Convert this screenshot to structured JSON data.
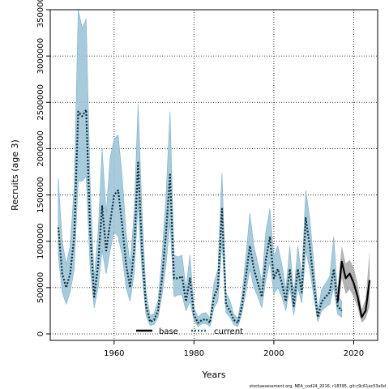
{
  "chart_data": {
    "type": "line",
    "xlabel": "Years",
    "ylabel": "Recruits (age 3)",
    "xlim": [
      1944,
      2026
    ],
    "ylim": [
      -70000,
      3500000
    ],
    "xticks": [
      1960,
      1980,
      2000,
      2020
    ],
    "xtick_labels": [
      "1960",
      "1980",
      "2000",
      "2020"
    ],
    "yticks": [
      0,
      500000,
      1000000,
      1500000,
      2000000,
      2500000,
      3000000,
      3500000
    ],
    "ytick_labels": [
      "0",
      "500000",
      "1000000",
      "1500000",
      "2000000",
      "2500000",
      "3000000",
      "3500000"
    ],
    "grid": true,
    "legend_position": "bottom-center",
    "legend": [
      {
        "label": "base",
        "style": "solid",
        "color": "#000000"
      },
      {
        "label": "current",
        "style": "dotted",
        "color": "#1a6a7a"
      }
    ],
    "band_colors": {
      "base": "#a0a0a0",
      "current": "#9fc5d8"
    },
    "series": [
      {
        "name": "current",
        "style": "dotted",
        "x": [
          1946,
          1947,
          1948,
          1949,
          1950,
          1951,
          1952,
          1953,
          1954,
          1955,
          1956,
          1957,
          1958,
          1959,
          1960,
          1961,
          1962,
          1963,
          1964,
          1965,
          1966,
          1967,
          1968,
          1969,
          1970,
          1971,
          1972,
          1973,
          1974,
          1975,
          1976,
          1977,
          1978,
          1979,
          1980,
          1981,
          1982,
          1983,
          1984,
          1985,
          1986,
          1987,
          1988,
          1989,
          1990,
          1991,
          1992,
          1993,
          1994,
          1995,
          1996,
          1997,
          1998,
          1999,
          2000,
          2001,
          2002,
          2003,
          2004,
          2005,
          2006,
          2007,
          2008,
          2009,
          2010,
          2011,
          2012,
          2013,
          2014,
          2015,
          2016,
          2017
        ],
        "y": [
          1150000,
          650000,
          500000,
          650000,
          1050000,
          2400000,
          2350000,
          2420000,
          1100000,
          400000,
          750000,
          1380000,
          900000,
          1200000,
          1500000,
          1550000,
          1180000,
          750000,
          500000,
          900000,
          1850000,
          900000,
          300000,
          130000,
          150000,
          250000,
          600000,
          1100000,
          1720000,
          600000,
          600000,
          620000,
          350000,
          600000,
          200000,
          120000,
          150000,
          160000,
          120000,
          400000,
          500000,
          1350000,
          320000,
          250000,
          150000,
          120000,
          300000,
          620000,
          950000,
          700000,
          550000,
          400000,
          800000,
          1050000,
          600000,
          700000,
          550000,
          350000,
          700000,
          300000,
          700000,
          450000,
          1250000,
          950000,
          550000,
          180000,
          350000,
          400000,
          450000,
          700000,
          300000,
          250000
        ],
        "lower": [
          850000,
          450000,
          320000,
          450000,
          700000,
          1650000,
          1650000,
          1700000,
          700000,
          280000,
          500000,
          900000,
          650000,
          900000,
          1100000,
          1050000,
          850000,
          500000,
          350000,
          650000,
          1400000,
          650000,
          200000,
          90000,
          100000,
          180000,
          420000,
          750000,
          1200000,
          400000,
          420000,
          420000,
          250000,
          350000,
          140000,
          80000,
          110000,
          110000,
          80000,
          280000,
          350000,
          1000000,
          230000,
          180000,
          100000,
          80000,
          220000,
          450000,
          700000,
          500000,
          400000,
          280000,
          580000,
          780000,
          430000,
          500000,
          400000,
          250000,
          500000,
          200000,
          500000,
          330000,
          900000,
          700000,
          400000,
          130000,
          250000,
          290000,
          320000,
          500000,
          210000,
          180000
        ],
        "upper": [
          1680000,
          1000000,
          750000,
          950000,
          1600000,
          3500000,
          3300000,
          3400000,
          1600000,
          600000,
          1100000,
          2000000,
          1300000,
          1900000,
          2100000,
          2150000,
          1700000,
          1100000,
          750000,
          1300000,
          2480000,
          1300000,
          450000,
          200000,
          220000,
          360000,
          850000,
          1500000,
          2400000,
          850000,
          830000,
          850000,
          500000,
          850000,
          280000,
          180000,
          220000,
          230000,
          170000,
          550000,
          700000,
          1740000,
          450000,
          360000,
          210000,
          170000,
          420000,
          830000,
          1300000,
          950000,
          760000,
          560000,
          1100000,
          1350000,
          830000,
          950000,
          750000,
          480000,
          950000,
          420000,
          950000,
          620000,
          1550000,
          1250000,
          760000,
          260000,
          480000,
          550000,
          620000,
          1050000,
          420000,
          350000
        ]
      },
      {
        "name": "base",
        "style": "solid",
        "x": [
          2016,
          2017,
          2018,
          2019,
          2020,
          2021,
          2022,
          2023,
          2024
        ],
        "y": [
          350000,
          780000,
          600000,
          650000,
          550000,
          400000,
          180000,
          250000,
          580000
        ],
        "lower": [
          230000,
          600000,
          430000,
          480000,
          400000,
          280000,
          120000,
          160000,
          300000
        ],
        "upper": [
          500000,
          950000,
          760000,
          800000,
          720000,
          540000,
          260000,
          380000,
          900000
        ]
      }
    ]
  },
  "footer": {
    "text": "stockassessment.org, NEA_cod24_2016, r18395, git:c9c61ac53a0d"
  }
}
